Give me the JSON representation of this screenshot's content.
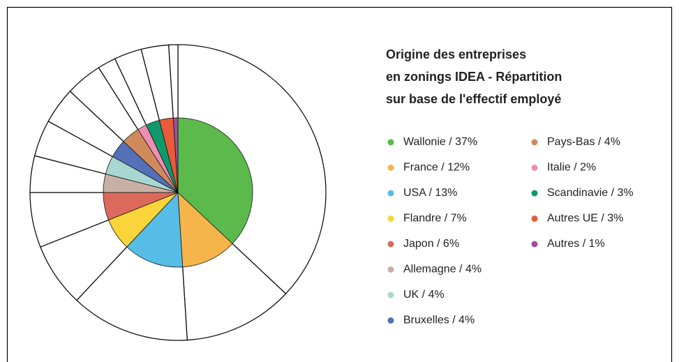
{
  "chart_data": {
    "type": "pie",
    "title": [
      "Origine des entreprises",
      "en zonings IDEA - Répartition",
      "sur base de l'effectif employé"
    ],
    "values": [
      37,
      12,
      13,
      7,
      6,
      4,
      4,
      4,
      4,
      2,
      3,
      3,
      1
    ],
    "value_labels": [
      "Wallonie / 37%",
      "France / 12%",
      "USA / 13%",
      "Flandre / 7%",
      "Japon / 6%",
      "Allemagne / 4%",
      "UK / 4%",
      "Bruxelles / 4%",
      "Pays-Bas / 4%",
      "Italie / 2%",
      "Scandinavie / 3%",
      "Autres UE / 3%",
      "Autres / 1%"
    ],
    "colors": [
      "#5cba4c",
      "#f6b54a",
      "#55bde6",
      "#fbd43a",
      "#dc6a5c",
      "#c8b1a4",
      "#a8d6d0",
      "#5470b8",
      "#cf8a5c",
      "#f08db2",
      "#10996a",
      "#ea5b3b",
      "#9b4f9f"
    ]
  }
}
